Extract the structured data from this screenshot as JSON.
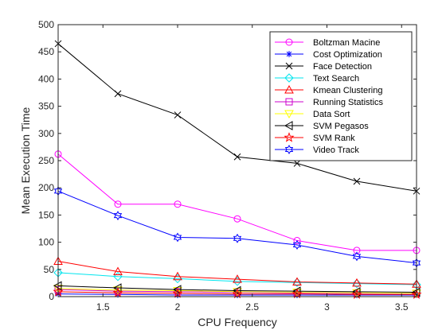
{
  "chart_data": {
    "type": "line",
    "xlabel": "CPU Frequency",
    "ylabel": "Mean Execution Time",
    "xlim": [
      1.2,
      3.6
    ],
    "ylim": [
      0,
      500
    ],
    "xticks": [
      1.5,
      2,
      2.5,
      3,
      3.5
    ],
    "xtick_labels": [
      "1.5",
      "2",
      "2.5",
      "3",
      "3.5"
    ],
    "yticks": [
      0,
      50,
      100,
      150,
      200,
      250,
      300,
      350,
      400,
      450,
      500
    ],
    "ytick_labels": [
      "0",
      "50",
      "100",
      "150",
      "200",
      "250",
      "300",
      "350",
      "400",
      "450",
      "500"
    ],
    "grid": false,
    "legend_position": "top-right",
    "x": [
      1.2,
      1.6,
      2.0,
      2.4,
      2.8,
      3.2,
      3.6
    ],
    "series": [
      {
        "name": "Boltzman Macine",
        "color": "#ff00ff",
        "marker": "circle",
        "values": [
          262,
          170,
          170,
          143,
          103,
          85,
          85
        ]
      },
      {
        "name": "Cost Optimization",
        "color": "#0000ff",
        "marker": "star",
        "values": [
          5,
          4,
          3,
          3,
          3,
          3,
          3
        ]
      },
      {
        "name": "Face Detection",
        "color": "#000000",
        "marker": "x",
        "values": [
          465,
          373,
          334,
          257,
          245,
          212,
          194
        ]
      },
      {
        "name": "Text Search",
        "color": "#00e5ee",
        "marker": "diamond",
        "values": [
          44,
          37,
          33,
          28,
          26,
          24,
          22
        ]
      },
      {
        "name": "Kmean Clustering",
        "color": "#ff0000",
        "marker": "triangle-up",
        "values": [
          65,
          46,
          37,
          32,
          27,
          25,
          23
        ]
      },
      {
        "name": "Running Statistics",
        "color": "#cc00cc",
        "marker": "square",
        "values": [
          13,
          10,
          9,
          8,
          7,
          6,
          6
        ]
      },
      {
        "name": "Data Sort",
        "color": "#ffff00",
        "marker": "triangle-down",
        "values": [
          15,
          12,
          11,
          9,
          8,
          7,
          6
        ]
      },
      {
        "name": "SVM Pegasos",
        "color": "#000000",
        "marker": "triangle-left",
        "values": [
          20,
          16,
          13,
          11,
          10,
          9,
          8
        ]
      },
      {
        "name": "SVM Rank",
        "color": "#ff0000",
        "marker": "pentagram",
        "values": [
          9,
          7,
          6,
          5,
          5,
          4,
          4
        ]
      },
      {
        "name": "Video Track",
        "color": "#0000ff",
        "marker": "hexagram",
        "values": [
          194,
          149,
          109,
          107,
          95,
          74,
          62
        ]
      }
    ]
  }
}
